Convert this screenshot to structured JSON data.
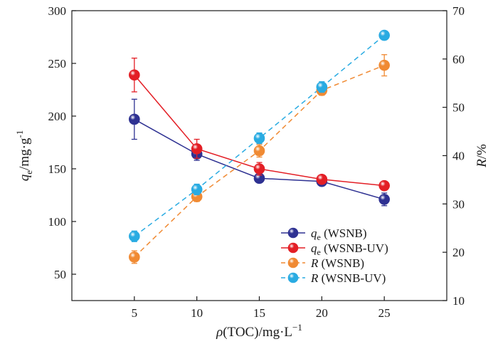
{
  "chart_data": {
    "type": "line",
    "title": "",
    "x": [
      5,
      10,
      15,
      20,
      25
    ],
    "xlabel": {
      "main": "ρ(TOC)/mg·L",
      "sup": "−1"
    },
    "ylabel_left": {
      "main": "q",
      "sub": "e",
      "rest": "/mg·g",
      "sup": "-1"
    },
    "ylabel_right": {
      "main": "R",
      "rest": "/%"
    },
    "xlim": [
      0,
      30
    ],
    "xticks": [
      5,
      10,
      15,
      20,
      25
    ],
    "ylim_left": [
      25,
      300
    ],
    "yticks_left": [
      50,
      100,
      150,
      200,
      250,
      300
    ],
    "ylim_right": [
      10,
      70
    ],
    "yticks_right": [
      10,
      20,
      30,
      40,
      50,
      60,
      70
    ],
    "legend_position": "bottom-right",
    "series": [
      {
        "name": "qe (WSNB)",
        "legend": {
          "main": "q",
          "sub": "e",
          "rest": " (WSNB)"
        },
        "axis": "left",
        "color": "#2e3192",
        "line_style": "solid",
        "values": [
          197,
          164,
          141,
          138,
          121
        ],
        "errors": [
          19,
          6,
          3,
          3,
          6
        ]
      },
      {
        "name": "qe (WSNB-UV)",
        "legend": {
          "main": "q",
          "sub": "e",
          "rest": " (WSNB-UV)"
        },
        "axis": "left",
        "color": "#e31e25",
        "line_style": "solid",
        "values": [
          239,
          169,
          150,
          140,
          134
        ],
        "errors": [
          16,
          9,
          6,
          3,
          3
        ]
      },
      {
        "name": "R (WSNB)",
        "legend": {
          "main": "R",
          "sub": "",
          "rest": " (WSNB)"
        },
        "axis": "right",
        "color": "#f08a33",
        "line_style": "dashed",
        "values": [
          19,
          31.5,
          41,
          53.5,
          58.7
        ],
        "errors": [
          1.3,
          1.0,
          1.3,
          1.0,
          2.2
        ]
      },
      {
        "name": "R (WSNB-UV)",
        "legend": {
          "main": "R",
          "sub": "",
          "rest": " (WSNB-UV)"
        },
        "axis": "right",
        "color": "#29abe2",
        "line_style": "dashed",
        "values": [
          23.3,
          33,
          43.6,
          54.2,
          64.9
        ],
        "errors": [
          1.1,
          1.1,
          1.1,
          1.1,
          0.5
        ]
      }
    ]
  }
}
